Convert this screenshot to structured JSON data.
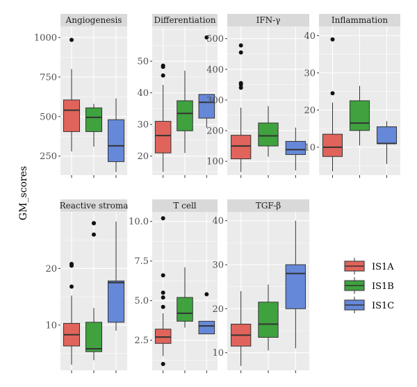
{
  "chart_data": {
    "type": "boxplot",
    "ylabel": "GM_scores",
    "legend": {
      "position": "right",
      "entries": [
        {
          "name": "IS1A",
          "color": "#e0645b"
        },
        {
          "name": "IS1B",
          "color": "#3fa23f"
        },
        {
          "name": "IS1C",
          "color": "#6688d8"
        }
      ]
    },
    "panel_bg": "#ebebeb",
    "strip_bg": "#d9d9d9",
    "groups": [
      "IS1A",
      "IS1B",
      "IS1C"
    ],
    "panels": [
      {
        "title": "Angiogenesis",
        "ylim": [
          130,
          1070
        ],
        "yticks": [
          "250",
          "500",
          "750",
          "1000"
        ],
        "boxes": [
          {
            "group": "IS1A",
            "min": 280,
            "q1": 405,
            "median": 540,
            "q3": 605,
            "max": 800,
            "outliers": [
              985
            ]
          },
          {
            "group": "IS1B",
            "min": 310,
            "q1": 405,
            "median": 495,
            "q3": 555,
            "max": 580,
            "outliers": []
          },
          {
            "group": "IS1C",
            "min": 150,
            "q1": 215,
            "median": 315,
            "q3": 480,
            "max": 615,
            "outliers": []
          }
        ]
      },
      {
        "title": "Differentiation",
        "ylim": [
          14,
          61
        ],
        "yticks": [
          "20",
          "30",
          "40",
          "50"
        ],
        "boxes": [
          {
            "group": "IS1A",
            "min": 15,
            "q1": 21,
            "median": 26.5,
            "q3": 31,
            "max": 42.5,
            "outliers": [
              45.5,
              48.2,
              48.6
            ]
          },
          {
            "group": "IS1B",
            "min": 21,
            "q1": 28,
            "median": 33.5,
            "q3": 37.5,
            "max": 47,
            "outliers": []
          },
          {
            "group": "IS1C",
            "min": 29,
            "q1": 32,
            "median": 37,
            "q3": 39.5,
            "max": 39.5,
            "outliers": [
              57.5
            ]
          }
        ]
      },
      {
        "title": "IFN-γ",
        "ylim": [
          55,
          540
        ],
        "yticks": [
          "100",
          "200",
          "300",
          "400",
          "500"
        ],
        "boxes": [
          {
            "group": "IS1A",
            "min": 65,
            "q1": 108,
            "median": 150,
            "q3": 185,
            "max": 275,
            "outliers": [
              340,
              350,
              355,
              455,
              478
            ]
          },
          {
            "group": "IS1B",
            "min": 115,
            "q1": 150,
            "median": 183,
            "q3": 225,
            "max": 280,
            "outliers": []
          },
          {
            "group": "IS1C",
            "min": 70,
            "q1": 122,
            "median": 138,
            "q3": 165,
            "max": 210,
            "outliers": []
          }
        ]
      },
      {
        "title": "Inflammation",
        "ylim": [
          2.5,
          42.5
        ],
        "yticks": [
          "10",
          "20",
          "30",
          "40"
        ],
        "boxes": [
          {
            "group": "IS1A",
            "min": 3.5,
            "q1": 7.5,
            "median": 10,
            "q3": 13.5,
            "max": 22,
            "outliers": [
              24.5,
              39
            ]
          },
          {
            "group": "IS1B",
            "min": 10.5,
            "q1": 14.5,
            "median": 16.5,
            "q3": 22.5,
            "max": 26.5,
            "outliers": []
          },
          {
            "group": "IS1C",
            "min": 5.5,
            "q1": 11,
            "median": 11,
            "q3": 15.5,
            "max": 17,
            "outliers": []
          }
        ]
      },
      {
        "title": "Reactive stroma",
        "ylim": [
          2,
          30
        ],
        "yticks": [
          "10",
          "20"
        ],
        "boxes": [
          {
            "group": "IS1A",
            "min": 3,
            "q1": 6.3,
            "median": 8.3,
            "q3": 10.3,
            "max": 15.2,
            "outliers": [
              16.8,
              20.5,
              20.8
            ]
          },
          {
            "group": "IS1B",
            "min": 3.8,
            "q1": 5.3,
            "median": 5.8,
            "q3": 10.5,
            "max": 13,
            "outliers": [
              26,
              28,
              28
            ]
          },
          {
            "group": "IS1C",
            "min": 9,
            "q1": 10.5,
            "median": 17.5,
            "q3": 17.8,
            "max": 28.3,
            "outliers": []
          }
        ]
      },
      {
        "title": "T cell",
        "ylim": [
          0.6,
          10.6
        ],
        "yticks": [
          "2.5",
          "5.0",
          "7.5",
          "10.0"
        ],
        "boxes": [
          {
            "group": "IS1A",
            "min": 1.5,
            "q1": 2.3,
            "median": 2.7,
            "q3": 3.2,
            "max": 4.2,
            "outliers": [
              1.0,
              4.6,
              5.2,
              5.5,
              6.6,
              10.2
            ]
          },
          {
            "group": "IS1B",
            "min": 3.3,
            "q1": 3.7,
            "median": 4.2,
            "q3": 5.2,
            "max": 7.1,
            "outliers": []
          },
          {
            "group": "IS1C",
            "min": 2.9,
            "q1": 2.9,
            "median": 3.4,
            "q3": 3.7,
            "max": 3.7,
            "outliers": [
              5.4
            ]
          }
        ]
      },
      {
        "title": "TGF-β",
        "ylim": [
          6,
          42
        ],
        "yticks": [
          "10",
          "20",
          "30",
          "40"
        ],
        "boxes": [
          {
            "group": "IS1A",
            "min": 7,
            "q1": 11.5,
            "median": 14,
            "q3": 16.5,
            "max": 24,
            "outliers": []
          },
          {
            "group": "IS1B",
            "min": 10.5,
            "q1": 13.5,
            "median": 16.5,
            "q3": 21.5,
            "max": 25.5,
            "outliers": []
          },
          {
            "group": "IS1C",
            "min": 11,
            "q1": 20,
            "median": 28,
            "q3": 30,
            "max": 40,
            "outliers": []
          }
        ]
      }
    ]
  }
}
